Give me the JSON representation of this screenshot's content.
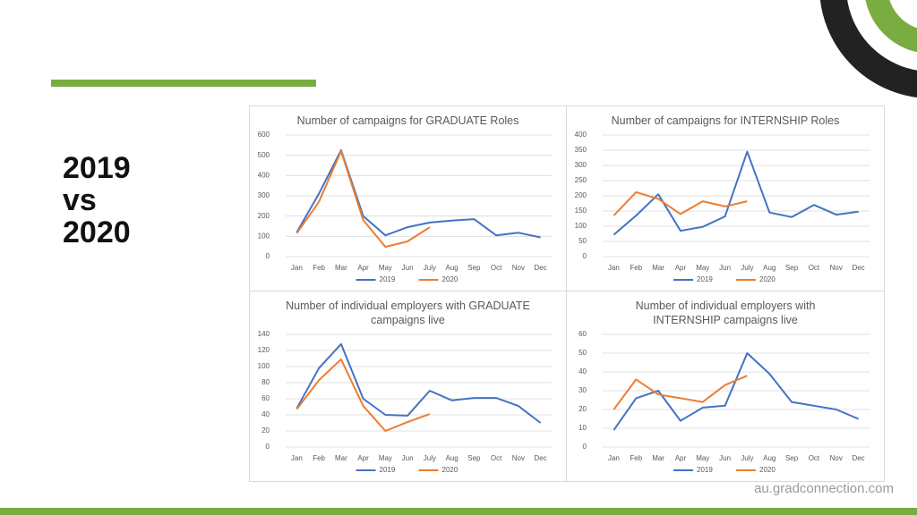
{
  "heading": [
    "2019",
    "vs",
    "2020"
  ],
  "footer": "au.gradconnection.com",
  "chart_data": [
    {
      "type": "line",
      "title": "Number of campaigns for GRADUATE Roles",
      "categories": [
        "Jan",
        "Feb",
        "Mar",
        "Apr",
        "May",
        "Jun",
        "July",
        "Aug",
        "Sep",
        "Oct",
        "Nov",
        "Dec"
      ],
      "series": [
        {
          "name": "2019",
          "color": "#4472c4",
          "values": [
            120,
            310,
            525,
            200,
            105,
            145,
            168,
            178,
            185,
            105,
            118,
            95
          ]
        },
        {
          "name": "2020",
          "color": "#ed7d31",
          "values": [
            115,
            270,
            520,
            180,
            48,
            75,
            145,
            null,
            null,
            null,
            null,
            null
          ]
        }
      ],
      "ylim": [
        0,
        600
      ],
      "yticks": [
        0,
        100,
        200,
        300,
        400,
        500,
        600
      ],
      "grid": true,
      "legend": "bottom"
    },
    {
      "type": "line",
      "title": "Number of campaigns for INTERNSHIP Roles",
      "categories": [
        "Jan",
        "Feb",
        "Mar",
        "Apr",
        "May",
        "Jun",
        "July",
        "Aug",
        "Sep",
        "Oct",
        "Nov",
        "Dec"
      ],
      "series": [
        {
          "name": "2019",
          "color": "#4472c4",
          "values": [
            72,
            135,
            205,
            85,
            98,
            132,
            345,
            145,
            130,
            170,
            138,
            148
          ]
        },
        {
          "name": "2020",
          "color": "#ed7d31",
          "values": [
            135,
            212,
            190,
            140,
            182,
            165,
            182,
            null,
            null,
            null,
            null,
            null
          ]
        }
      ],
      "ylim": [
        0,
        400
      ],
      "yticks": [
        0,
        50,
        100,
        150,
        200,
        250,
        300,
        350,
        400
      ],
      "grid": true,
      "legend": "bottom"
    },
    {
      "type": "line",
      "title": "Number of individual employers with GRADUATE campaigns live",
      "categories": [
        "Jan",
        "Feb",
        "Mar",
        "Apr",
        "May",
        "Jun",
        "July",
        "Aug",
        "Sep",
        "Oct",
        "Nov",
        "Dec"
      ],
      "series": [
        {
          "name": "2019",
          "color": "#4472c4",
          "values": [
            48,
            98,
            128,
            60,
            40,
            39,
            70,
            58,
            61,
            61,
            51,
            30
          ]
        },
        {
          "name": "2020",
          "color": "#ed7d31",
          "values": [
            47,
            83,
            109,
            51,
            20,
            31,
            41,
            null,
            null,
            null,
            null,
            null
          ]
        }
      ],
      "ylim": [
        0,
        140
      ],
      "yticks": [
        0,
        20,
        40,
        60,
        80,
        100,
        120,
        140
      ],
      "grid": true,
      "legend": "bottom"
    },
    {
      "type": "line",
      "title": "Number of individual employers with INTERNSHIP campaigns live",
      "categories": [
        "Jan",
        "Feb",
        "Mar",
        "Apr",
        "May",
        "Jun",
        "July",
        "Aug",
        "Sep",
        "Oct",
        "Nov",
        "Dec"
      ],
      "series": [
        {
          "name": "2019",
          "color": "#4472c4",
          "values": [
            9,
            26,
            30,
            14,
            21,
            22,
            50,
            39,
            24,
            22,
            20,
            15
          ]
        },
        {
          "name": "2020",
          "color": "#ed7d31",
          "values": [
            20,
            36,
            28,
            26,
            24,
            33,
            38,
            null,
            null,
            null,
            null,
            null
          ]
        }
      ],
      "ylim": [
        0,
        60
      ],
      "yticks": [
        0,
        10,
        20,
        30,
        40,
        50,
        60
      ],
      "grid": true,
      "legend": "bottom"
    }
  ]
}
